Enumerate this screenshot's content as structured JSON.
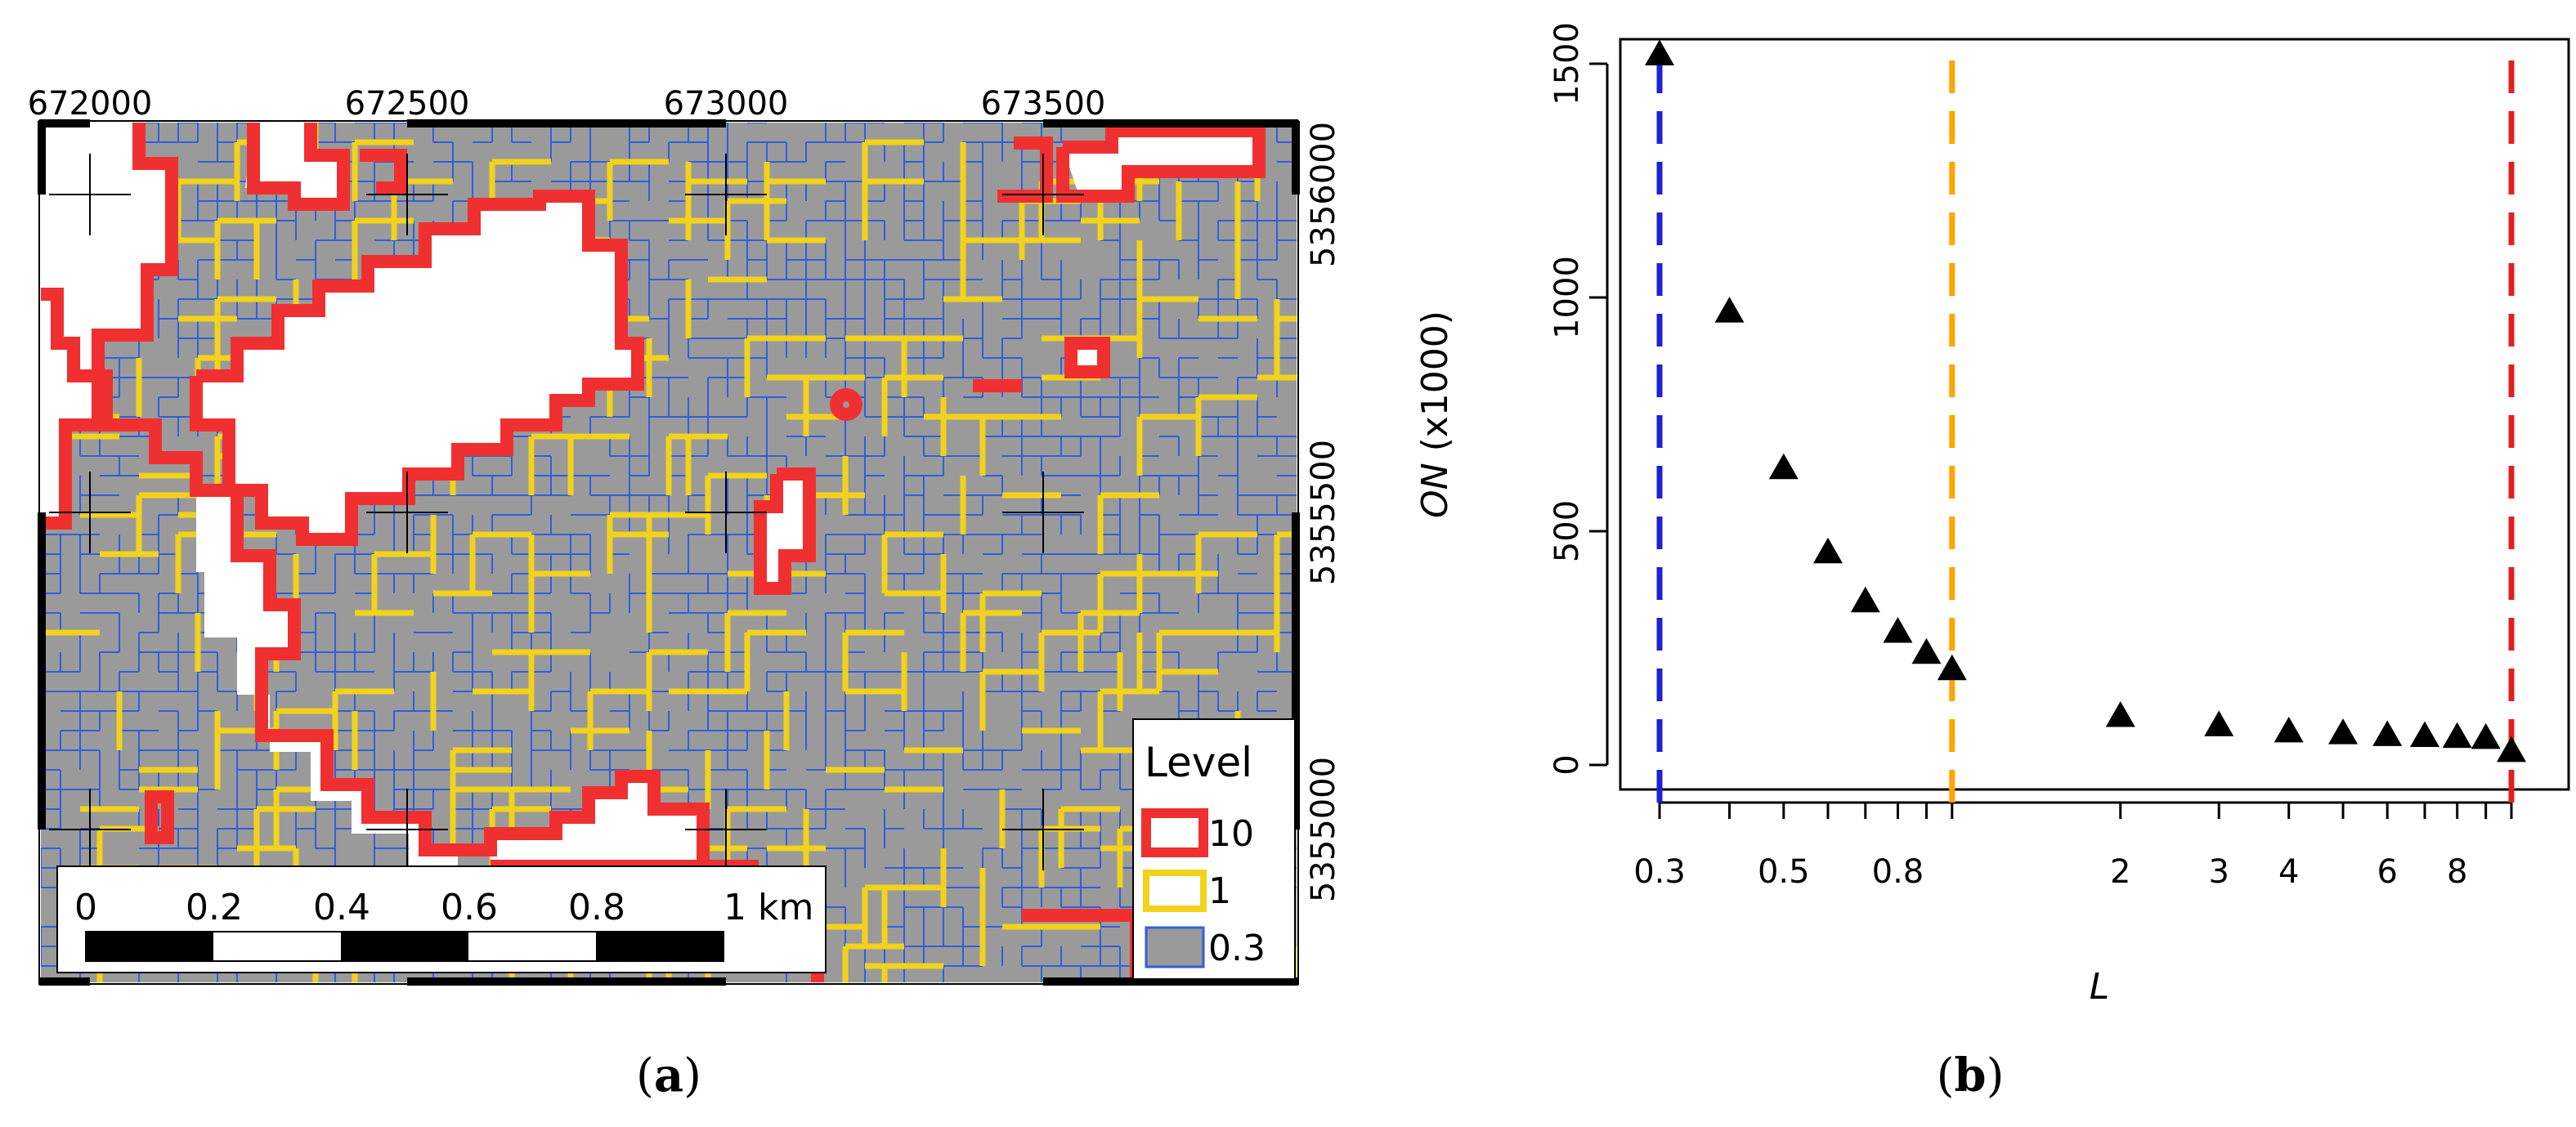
{
  "panel_a": {
    "x_ticks": [
      "672000",
      "672500",
      "673000",
      "673500"
    ],
    "y_ticks": [
      "5356000",
      "5355500",
      "5355000"
    ],
    "legend": {
      "title": "Level",
      "items": [
        {
          "label": "10",
          "color": "#f03030"
        },
        {
          "label": "1",
          "color": "#f2d21a"
        },
        {
          "label": "0.3",
          "color": "#2f5fdc",
          "fill": "#9a9a9a"
        }
      ]
    },
    "scale_bar": {
      "labels": [
        "0",
        "0.2",
        "0.4",
        "0.6",
        "0.8",
        "1 km"
      ]
    },
    "colors": {
      "background": "#9a9a9a",
      "level_10": "#f03030",
      "level_1": "#f2d21a",
      "level_03": "#2f5fdc"
    },
    "caption": "a"
  },
  "panel_b": {
    "caption": "b",
    "ylabel_italic": "ON",
    "ylabel_rest": " (x1000)",
    "xlabel": "L",
    "y_tick_labels": [
      "0",
      "500",
      "1000",
      "1500"
    ],
    "x_tick_labels": [
      "0.3",
      "0.5",
      "0.8",
      "2",
      "3",
      "4",
      "6",
      "8"
    ]
  },
  "chart_data": {
    "type": "scatter",
    "x_scale": "log",
    "xlabel": "L",
    "ylabel": "ON (x1000)",
    "xlim": [
      0.3,
      10
    ],
    "ylim": [
      0,
      1550
    ],
    "x": [
      0.3,
      0.4,
      0.5,
      0.6,
      0.7,
      0.8,
      0.9,
      1,
      2,
      3,
      4,
      5,
      6,
      7,
      8,
      9,
      10
    ],
    "y": [
      1520,
      970,
      635,
      455,
      350,
      285,
      240,
      205,
      105,
      85,
      72,
      68,
      64,
      62,
      60,
      58,
      30
    ],
    "marker": "triangle",
    "vlines": [
      {
        "x": 0.3,
        "color": "#1f1fd6",
        "style": "dashed"
      },
      {
        "x": 1,
        "color": "#ffa500",
        "style": "dashed"
      },
      {
        "x": 10,
        "color": "#e02020",
        "style": "dashed"
      }
    ]
  }
}
